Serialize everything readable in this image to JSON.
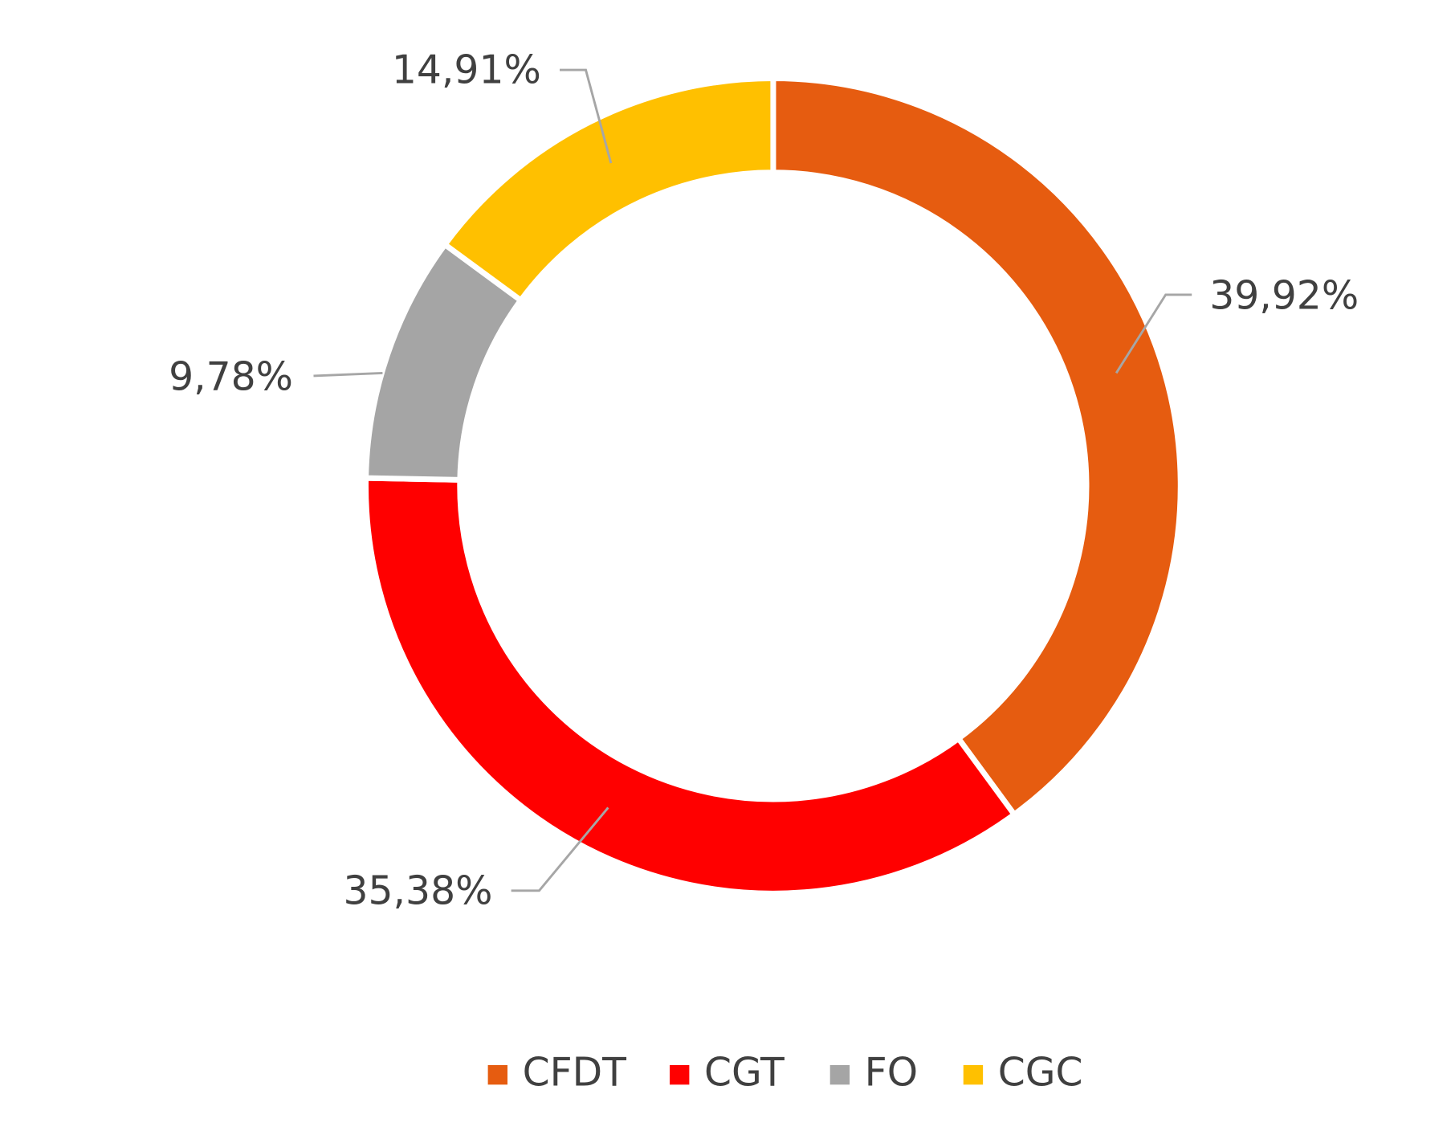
{
  "chart_data": {
    "type": "donut",
    "categories": [
      "CFDT",
      "CGT",
      "FO",
      "CGC"
    ],
    "values": [
      39.92,
      35.38,
      9.78,
      14.91
    ],
    "value_labels": [
      "39,92%",
      "35,38%",
      "9,78%",
      "14,91%"
    ],
    "colors": [
      "#E65C10",
      "#FF0000",
      "#A5A5A5",
      "#FFC000"
    ],
    "legend": "bottom"
  }
}
